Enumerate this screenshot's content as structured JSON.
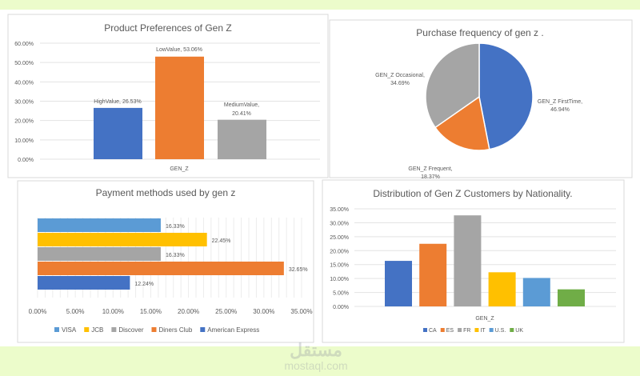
{
  "colors": {
    "blue": "#4472c4",
    "orange": "#ed7d31",
    "gray": "#a5a5a5",
    "yellow": "#ffc000",
    "lightblue": "#5b9bd5",
    "green": "#70ad47",
    "band": "#ecfccb"
  },
  "watermark": {
    "arabic": "مستقل",
    "latin": "mostaql.com"
  },
  "chart_data": [
    {
      "type": "bar",
      "title": "Product Preferences of Gen Z",
      "categories": [
        "GEN_Z"
      ],
      "series": [
        {
          "name": "HighValue",
          "values": [
            26.53
          ],
          "label": "HighValue, 26.53%"
        },
        {
          "name": "LowValue",
          "values": [
            53.06
          ],
          "label": "LowValue, 53.06%"
        },
        {
          "name": "MediumValue",
          "values": [
            20.41
          ],
          "label": "MediumValue, 20.41%"
        }
      ],
      "yticks": [
        "0.00%",
        "10.00%",
        "20.00%",
        "30.00%",
        "40.00%",
        "50.00%",
        "60.00%"
      ],
      "ylim": [
        0,
        60
      ],
      "grid": true,
      "legend": "none"
    },
    {
      "type": "pie",
      "title": "Purchase frequency of gen z .",
      "slices": [
        {
          "name": "GEN_Z FirstTime",
          "value": 46.94,
          "label1": "GEN_Z FirstTime,",
          "label2": "46.94%"
        },
        {
          "name": "GEN_Z Frequent",
          "value": 18.37,
          "label1": "GEN_Z Frequent,",
          "label2": "18.37%"
        },
        {
          "name": "GEN_Z Occasional",
          "value": 34.69,
          "label1": "GEN_Z Occasional,",
          "label2": "34.69%"
        }
      ]
    },
    {
      "type": "bar",
      "orientation": "horizontal",
      "title": "Payment methods used by gen z",
      "series": [
        {
          "name": "VISA",
          "value": 16.33,
          "label": "16.33%"
        },
        {
          "name": "JCB",
          "value": 22.45,
          "label": "22.45%"
        },
        {
          "name": "Discover",
          "value": 16.33,
          "label": "16.33%"
        },
        {
          "name": "Diners Club",
          "value": 32.65,
          "label": "32.65%"
        },
        {
          "name": "American Express",
          "value": 12.24,
          "label": "12.24%"
        }
      ],
      "xticks": [
        "0.00%",
        "5.00%",
        "10.00%",
        "15.00%",
        "20.00%",
        "25.00%",
        "30.00%",
        "35.00%"
      ],
      "xlim": [
        0,
        35
      ],
      "grid": true,
      "legend": "bottom"
    },
    {
      "type": "bar",
      "title": "Distribution of Gen Z Customers by Nationality.",
      "categories": [
        "GEN_Z"
      ],
      "series": [
        {
          "name": "CA",
          "value": 16.33
        },
        {
          "name": "ES",
          "value": 22.45
        },
        {
          "name": "FR",
          "value": 32.65
        },
        {
          "name": "IT",
          "value": 12.24
        },
        {
          "name": "U.S.",
          "value": 10.2
        },
        {
          "name": "UK",
          "value": 6.12
        }
      ],
      "yticks": [
        "0.00%",
        "5.00%",
        "10.00%",
        "15.00%",
        "20.00%",
        "25.00%",
        "30.00%",
        "35.00%"
      ],
      "ylim": [
        0,
        35
      ],
      "grid": true,
      "legend": "bottom"
    }
  ]
}
